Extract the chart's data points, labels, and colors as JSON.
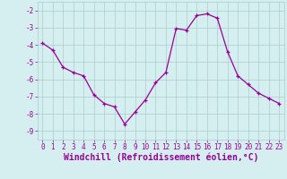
{
  "x": [
    0,
    1,
    2,
    3,
    4,
    5,
    6,
    7,
    8,
    9,
    10,
    11,
    12,
    13,
    14,
    15,
    16,
    17,
    18,
    19,
    20,
    21,
    22,
    23
  ],
  "y": [
    -3.9,
    -4.3,
    -5.3,
    -5.6,
    -5.8,
    -6.9,
    -7.4,
    -7.6,
    -8.6,
    -7.9,
    -7.2,
    -6.2,
    -5.6,
    -3.05,
    -3.15,
    -2.3,
    -2.2,
    -2.45,
    -4.4,
    -5.8,
    -6.3,
    -6.8,
    -7.1,
    -7.4
  ],
  "line_color": "#990099",
  "marker": "+",
  "bg_color": "#d5eef0",
  "grid_color": "#aacccc",
  "xlabel": "Windchill (Refroidissement éolien,°C)",
  "xlabel_color": "#990099",
  "ylim": [
    -9.5,
    -1.5
  ],
  "xlim": [
    -0.5,
    23.5
  ],
  "yticks": [
    -9,
    -8,
    -7,
    -6,
    -5,
    -4,
    -3,
    -2
  ],
  "xticks": [
    0,
    1,
    2,
    3,
    4,
    5,
    6,
    7,
    8,
    9,
    10,
    11,
    12,
    13,
    14,
    15,
    16,
    17,
    18,
    19,
    20,
    21,
    22,
    23
  ],
  "tick_color": "#990099",
  "tick_fontsize": 5.5,
  "xlabel_fontsize": 7.0
}
